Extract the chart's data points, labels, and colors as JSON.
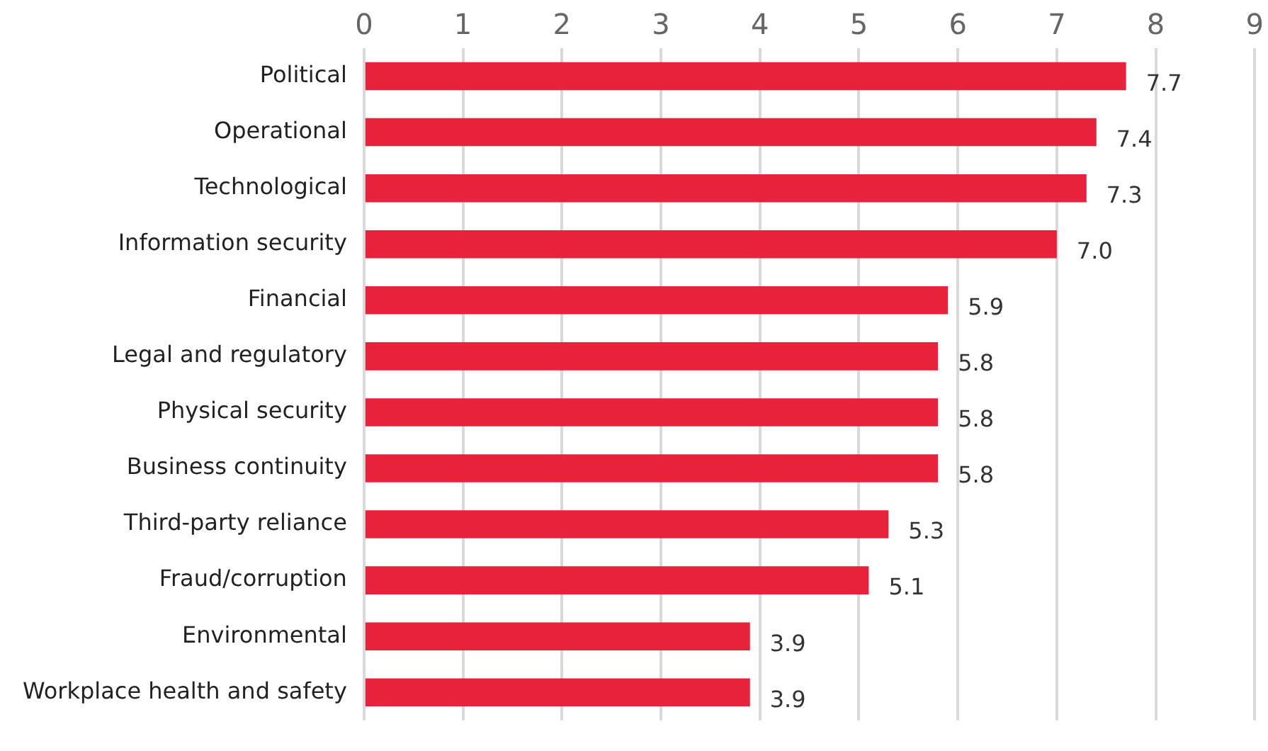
{
  "chart_data": {
    "type": "bar",
    "orientation": "horizontal",
    "categories": [
      "Political",
      "Operational",
      "Technological",
      "Information security",
      "Financial",
      "Legal and regulatory",
      "Physical security",
      "Business continuity",
      "Third-party reliance",
      "Fraud/corruption",
      "Environmental",
      "Workplace health and safety"
    ],
    "values": [
      7.7,
      7.4,
      7.3,
      7.0,
      5.9,
      5.8,
      5.8,
      5.8,
      5.3,
      5.1,
      3.9,
      3.9
    ],
    "value_labels": [
      "7.7",
      "7.4",
      "7.3",
      "7.0",
      "5.9",
      "5.8",
      "5.8",
      "5.8",
      "5.3",
      "5.1",
      "3.9",
      "3.9"
    ],
    "color": "#e8223b",
    "xlim": [
      0,
      9
    ],
    "xticks": [
      0,
      1,
      2,
      3,
      4,
      5,
      6,
      7,
      8,
      9
    ],
    "grid": "x"
  }
}
